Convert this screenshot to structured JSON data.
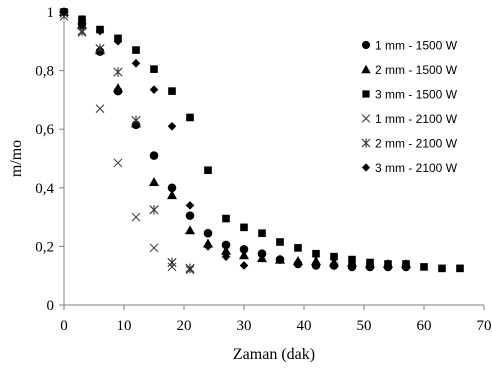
{
  "chart_data": {
    "type": "scatter",
    "xlabel": "Zaman (dak)",
    "ylabel": "m/mo",
    "xlim": [
      0,
      70
    ],
    "ylim": [
      0,
      1
    ],
    "xticks": [
      0,
      10,
      20,
      30,
      40,
      50,
      60,
      70
    ],
    "yticks": [
      0,
      0.2,
      0.4,
      0.6,
      0.8,
      1
    ],
    "ytick_labels": [
      "0",
      "0,2",
      "0,4",
      "0,6",
      "0,8",
      "1"
    ],
    "grid": false,
    "legend_position": "right",
    "series": [
      {
        "name": "1 mm - 1500 W",
        "marker": "circle",
        "x": [
          0,
          3,
          6,
          9,
          12,
          15,
          18,
          21,
          24,
          27,
          30,
          33,
          36,
          39,
          42,
          45,
          48,
          51,
          54,
          57
        ],
        "y": [
          1.0,
          0.96,
          0.865,
          0.73,
          0.615,
          0.51,
          0.4,
          0.305,
          0.245,
          0.205,
          0.19,
          0.175,
          0.155,
          0.14,
          0.135,
          0.135,
          0.13,
          0.13,
          0.13,
          0.13
        ]
      },
      {
        "name": "2 mm - 1500 W",
        "marker": "triangle",
        "x": [
          0,
          3,
          6,
          9,
          12,
          15,
          18,
          21,
          24,
          27,
          30,
          33,
          36,
          39,
          42,
          45,
          48,
          51,
          54,
          57
        ],
        "y": [
          1.0,
          0.955,
          0.87,
          0.74,
          0.62,
          0.42,
          0.375,
          0.255,
          0.21,
          0.185,
          0.17,
          0.16,
          0.155,
          0.15,
          0.15,
          0.145,
          0.145,
          0.14,
          0.14,
          0.14
        ]
      },
      {
        "name": "3 mm - 1500 W",
        "marker": "square",
        "x": [
          0,
          3,
          6,
          9,
          12,
          15,
          18,
          21,
          24,
          27,
          30,
          33,
          36,
          39,
          42,
          45,
          48,
          51,
          54,
          57,
          60,
          63,
          66
        ],
        "y": [
          1.0,
          0.975,
          0.94,
          0.91,
          0.87,
          0.805,
          0.73,
          0.64,
          0.46,
          0.295,
          0.265,
          0.245,
          0.215,
          0.195,
          0.175,
          0.165,
          0.155,
          0.145,
          0.14,
          0.14,
          0.13,
          0.125,
          0.125
        ]
      },
      {
        "name": "1 mm - 2100 W",
        "marker": "x",
        "x": [
          0,
          3,
          6,
          9,
          12,
          15,
          18,
          21
        ],
        "y": [
          0.985,
          0.93,
          0.67,
          0.485,
          0.3,
          0.195,
          0.13,
          0.12
        ]
      },
      {
        "name": "2 mm - 2100 W",
        "marker": "asterisk",
        "x": [
          0,
          3,
          6,
          9,
          12,
          15,
          18,
          21
        ],
        "y": [
          0.995,
          0.935,
          0.875,
          0.795,
          0.63,
          0.325,
          0.145,
          0.125
        ]
      },
      {
        "name": "3 mm - 2100 W",
        "marker": "diamond",
        "x": [
          0,
          3,
          6,
          9,
          12,
          15,
          18,
          21,
          24,
          27,
          30
        ],
        "y": [
          1.0,
          0.975,
          0.935,
          0.9,
          0.825,
          0.735,
          0.61,
          0.34,
          0.2,
          0.165,
          0.135
        ]
      }
    ]
  }
}
